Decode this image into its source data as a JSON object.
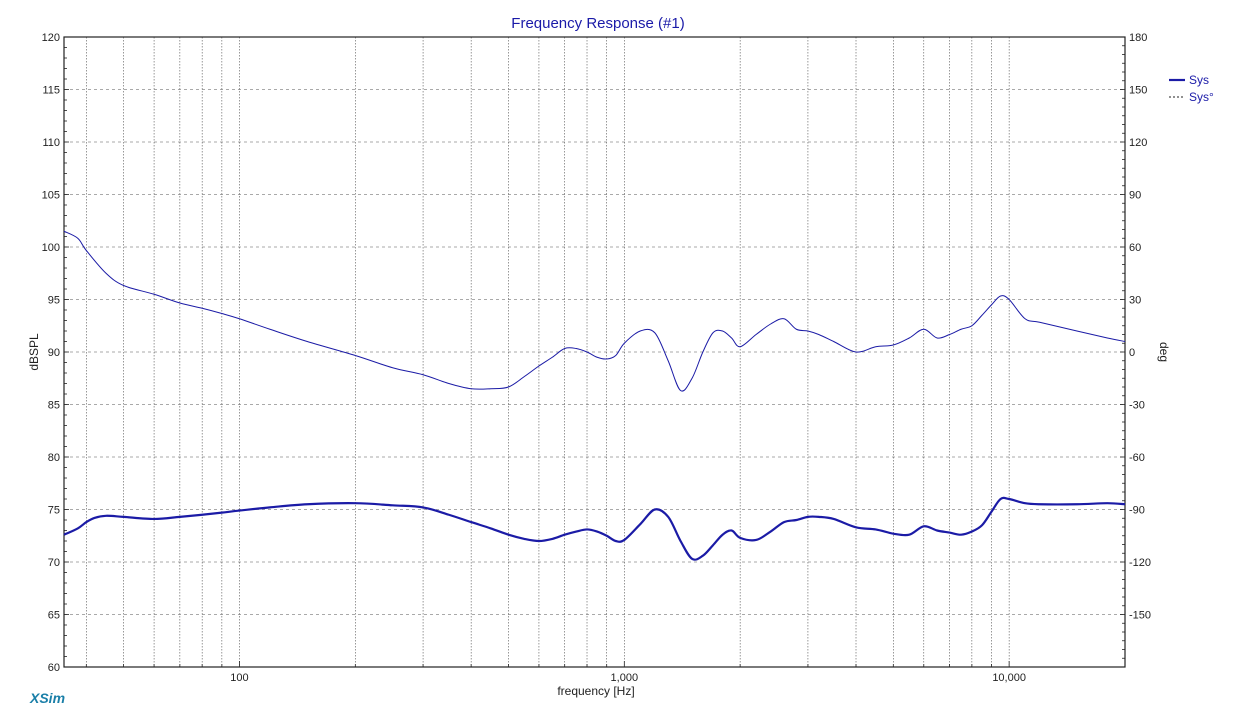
{
  "app": {
    "brand": "XSim"
  },
  "colors": {
    "series": "#1b1ba6",
    "grid": "#555555",
    "title": "#1a1aa8",
    "brand": "#1a7fa8"
  },
  "chart_data": {
    "type": "line",
    "title": "Frequency Response (#1)",
    "xlabel": "frequency [Hz]",
    "ylabel": "dBSPL",
    "y2label": "deg",
    "xscale": "log",
    "xlim": [
      35,
      20000
    ],
    "ylim": [
      60,
      120
    ],
    "y2lim": [
      -180,
      180
    ],
    "grid": true,
    "legend_position": "right",
    "x_ticks": [
      {
        "value": 100,
        "label": "100"
      },
      {
        "value": 1000,
        "label": "1,000"
      },
      {
        "value": 10000,
        "label": "10,000"
      }
    ],
    "y_ticks": [
      {
        "value": 120,
        "label": "120"
      },
      {
        "value": 115,
        "label": "115"
      },
      {
        "value": 110,
        "label": "110"
      },
      {
        "value": 105,
        "label": "105"
      },
      {
        "value": 100,
        "label": "100"
      },
      {
        "value": 95,
        "label": "95"
      },
      {
        "value": 90,
        "label": "90"
      },
      {
        "value": 85,
        "label": "85"
      },
      {
        "value": 80,
        "label": "80"
      },
      {
        "value": 75,
        "label": "75"
      },
      {
        "value": 70,
        "label": "70"
      },
      {
        "value": 65,
        "label": "65"
      },
      {
        "value": 60,
        "label": "60"
      }
    ],
    "y2_ticks": [
      {
        "value": 180,
        "label": "180"
      },
      {
        "value": 150,
        "label": "150"
      },
      {
        "value": 120,
        "label": "120"
      },
      {
        "value": 90,
        "label": "90"
      },
      {
        "value": 60,
        "label": "60"
      },
      {
        "value": 30,
        "label": "30"
      },
      {
        "value": 0,
        "label": "0"
      },
      {
        "value": -30,
        "label": "-30"
      },
      {
        "value": -60,
        "label": "-60"
      },
      {
        "value": -90,
        "label": "-90"
      },
      {
        "value": -120,
        "label": "-120"
      },
      {
        "value": -150,
        "label": "-150"
      }
    ],
    "series": [
      {
        "name": "Sys",
        "axis": "left",
        "style": "solid",
        "x": [
          35,
          38,
          40,
          42,
          45,
          50,
          60,
          70,
          80,
          90,
          100,
          120,
          150,
          200,
          250,
          300,
          350,
          400,
          450,
          500,
          550,
          600,
          650,
          700,
          750,
          800,
          850,
          900,
          950,
          1000,
          1100,
          1200,
          1300,
          1400,
          1500,
          1600,
          1700,
          1800,
          1900,
          2000,
          2200,
          2400,
          2600,
          2800,
          3000,
          3200,
          3500,
          4000,
          4500,
          5000,
          5500,
          6000,
          6500,
          7000,
          7500,
          8000,
          8500,
          9000,
          9500,
          10000,
          11000,
          12000,
          15000,
          18000,
          20000
        ],
        "values": [
          72.6,
          73.2,
          73.8,
          74.2,
          74.4,
          74.3,
          74.1,
          74.3,
          74.5,
          74.7,
          74.9,
          75.2,
          75.5,
          75.6,
          75.4,
          75.2,
          74.5,
          73.8,
          73.2,
          72.6,
          72.2,
          72.0,
          72.2,
          72.6,
          72.9,
          73.1,
          72.9,
          72.5,
          72.0,
          72.1,
          73.6,
          75.0,
          74.3,
          72.0,
          70.3,
          70.6,
          71.6,
          72.6,
          73.0,
          72.3,
          72.1,
          72.9,
          73.8,
          74.0,
          74.3,
          74.3,
          74.1,
          73.3,
          73.1,
          72.7,
          72.6,
          73.4,
          73.0,
          72.8,
          72.6,
          72.9,
          73.5,
          74.8,
          76.0,
          76.0,
          75.6,
          75.5,
          75.5,
          75.6,
          75.5
        ]
      },
      {
        "name": "Sys°",
        "axis": "right",
        "style": "dashed",
        "x": [
          35,
          38,
          40,
          45,
          50,
          60,
          70,
          80,
          90,
          100,
          120,
          150,
          200,
          250,
          300,
          350,
          400,
          450,
          500,
          550,
          600,
          650,
          700,
          750,
          800,
          850,
          900,
          950,
          1000,
          1100,
          1200,
          1300,
          1400,
          1500,
          1600,
          1700,
          1800,
          1900,
          2000,
          2200,
          2400,
          2600,
          2800,
          3000,
          3200,
          3500,
          4000,
          4500,
          5000,
          5500,
          6000,
          6500,
          7000,
          7500,
          8000,
          8500,
          9000,
          9500,
          10000,
          11000,
          12000,
          15000,
          18000,
          20000
        ],
        "values": [
          69,
          65,
          58,
          45,
          38,
          33,
          28,
          25,
          22,
          19,
          13,
          6,
          -2,
          -9,
          -13,
          -18,
          -21,
          -21,
          -20,
          -14,
          -8,
          -3,
          2,
          2,
          0,
          -3,
          -4,
          -2,
          5,
          12,
          11,
          -5,
          -22,
          -15,
          0,
          11,
          12,
          8,
          3,
          10,
          16,
          19,
          13,
          12,
          10,
          6,
          0,
          3,
          4,
          8,
          13,
          8,
          10,
          13,
          15,
          21,
          27,
          32,
          30,
          19,
          17,
          12,
          8,
          6
        ]
      }
    ]
  }
}
